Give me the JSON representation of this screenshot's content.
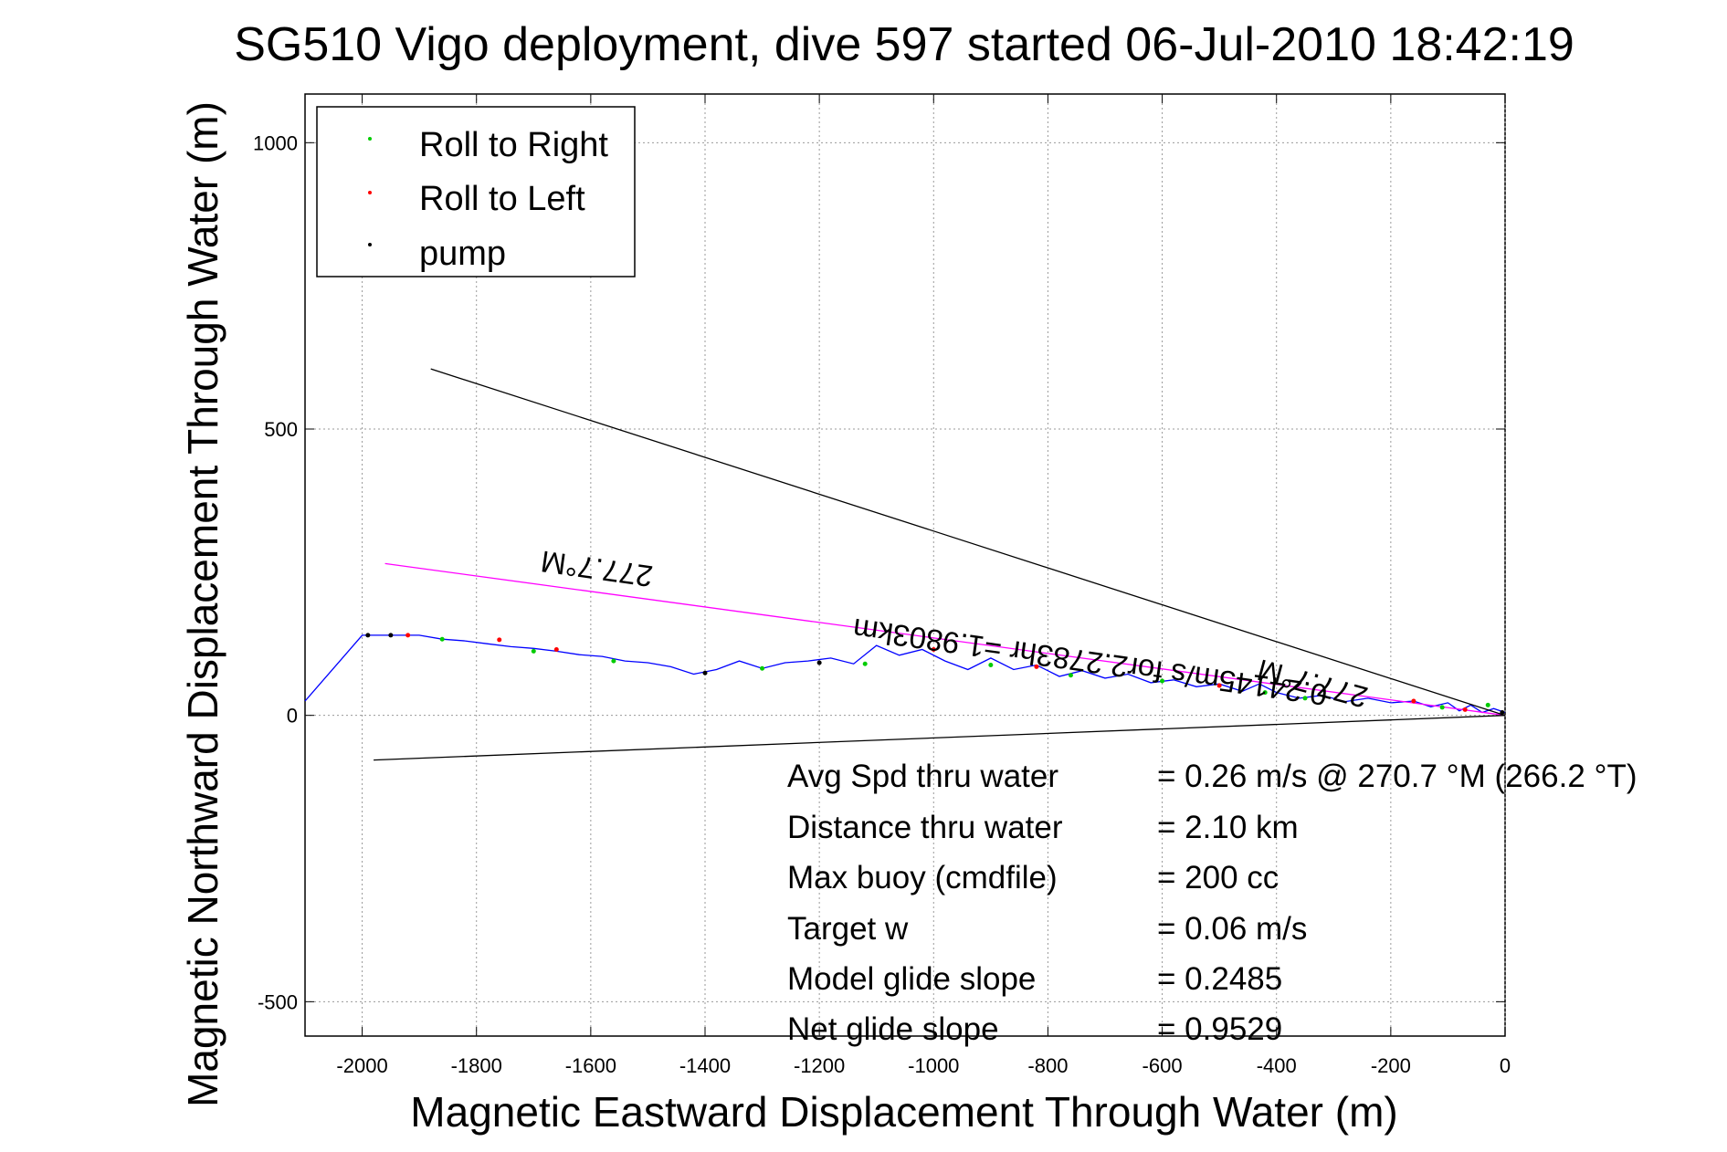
{
  "chart_data": {
    "type": "line",
    "title": "SG510 Vigo deployment, dive 597 started 06-Jul-2010 18:42:19",
    "xlabel": "Magnetic Eastward Displacement Through Water (m)",
    "ylabel": "Magnetic Northward Displacement Through Water (m)",
    "xlim": [
      -2100,
      0
    ],
    "ylim": [
      -560,
      1085
    ],
    "grid": true,
    "legend_position": "top-left",
    "x_ticks": [
      -2000,
      -1800,
      -1600,
      -1400,
      -1200,
      -1000,
      -800,
      -600,
      -400,
      -200,
      0
    ],
    "y_ticks": [
      -500,
      0,
      500,
      1000
    ],
    "x_tick_labels": [
      "-2000",
      "-1800",
      "-1600",
      "-1400",
      "-1200",
      "-1000",
      "-800",
      "-600",
      "-400",
      "-200",
      "0"
    ],
    "y_tick_labels": [
      "-500",
      "0",
      "500",
      "1000"
    ],
    "legend": [
      {
        "label": "Roll to Right",
        "color": "#00cc00"
      },
      {
        "label": "Roll to Left",
        "color": "#ff0000"
      },
      {
        "label": "pump",
        "color": "#000000"
      }
    ],
    "series": [
      {
        "color": "#0000ff",
        "x": [
          0,
          -20,
          -40,
          -60,
          -80,
          -100,
          -130,
          -160,
          -200,
          -240,
          -280,
          -320,
          -360,
          -400,
          -430,
          -460,
          -500,
          -540,
          -580,
          -620,
          -660,
          -700,
          -740,
          -780,
          -820,
          -860,
          -900,
          -940,
          -980,
          -1020,
          -1060,
          -1100,
          -1140,
          -1180,
          -1220,
          -1260,
          -1300,
          -1340,
          -1380,
          -1420,
          -1460,
          -1500,
          -1540,
          -1580,
          -1620,
          -1660,
          -1700,
          -1740,
          -1780,
          -1820,
          -1860,
          -1900,
          -1940,
          -1980,
          -2000,
          -2100
        ],
        "y": [
          5,
          12,
          5,
          18,
          8,
          22,
          15,
          25,
          22,
          30,
          24,
          35,
          30,
          40,
          55,
          42,
          55,
          50,
          62,
          57,
          72,
          65,
          78,
          68,
          88,
          80,
          100,
          80,
          95,
          115,
          105,
          122,
          90,
          100,
          95,
          92,
          82,
          95,
          80,
          72,
          85,
          92,
          95,
          103,
          106,
          112,
          117,
          120,
          125,
          130,
          133,
          140,
          140,
          140,
          140,
          25
        ]
      },
      {
        "color": "#ff00ff",
        "x": [
          0,
          -1960
        ],
        "y": [
          0,
          265
        ]
      },
      {
        "color": "#000000",
        "x": [
          0,
          -1880
        ],
        "y": [
          0,
          605
        ]
      },
      {
        "color": "#000000",
        "x": [
          0,
          -1980
        ],
        "y": [
          0,
          -78
        ]
      }
    ],
    "marker_points": {
      "roll_right": [
        [
          -30,
          18
        ],
        [
          -110,
          14
        ],
        [
          -350,
          30
        ],
        [
          -420,
          40
        ],
        [
          -600,
          60
        ],
        [
          -760,
          70
        ],
        [
          -900,
          88
        ],
        [
          -1120,
          90
        ],
        [
          -1300,
          82
        ],
        [
          -1560,
          95
        ],
        [
          -1700,
          112
        ],
        [
          -1860,
          133
        ]
      ],
      "roll_left": [
        [
          -70,
          10
        ],
        [
          -160,
          25
        ],
        [
          -500,
          52
        ],
        [
          -820,
          85
        ],
        [
          -1000,
          115
        ],
        [
          -1660,
          115
        ],
        [
          -1760,
          132
        ],
        [
          -1920,
          140
        ]
      ],
      "pump": [
        [
          -5,
          5
        ],
        [
          -1200,
          92
        ],
        [
          -1400,
          74
        ],
        [
          -1950,
          140
        ],
        [
          -1990,
          140
        ]
      ]
    },
    "annotations": [
      {
        "text": "277.7°M",
        "at": [
          -1480,
          272
        ],
        "rotation": 188
      },
      {
        "text": "277.7°M",
        "at": [
          -330,
          88
        ],
        "rotation": 195
      },
      {
        "text": "0.24145m/s for2.2783hr =1.9803km",
        "at": [
          -900,
          85
        ],
        "rotation": 188
      }
    ],
    "stats": [
      {
        "label": "Avg Spd thru water",
        "value": "=  0.26 m/s @ 270.7 °M (266.2 °T)"
      },
      {
        "label": "Distance thru water",
        "value": "=  2.10 km"
      },
      {
        "label": "Max buoy (cmdfile)",
        "value": "= 200 cc"
      },
      {
        "label": "Target w",
        "value": "= 0.06 m/s"
      },
      {
        "label": "Model glide slope",
        "value": "= 0.2485"
      },
      {
        "label": "Net glide slope",
        "value": "= 0.9529"
      }
    ]
  }
}
